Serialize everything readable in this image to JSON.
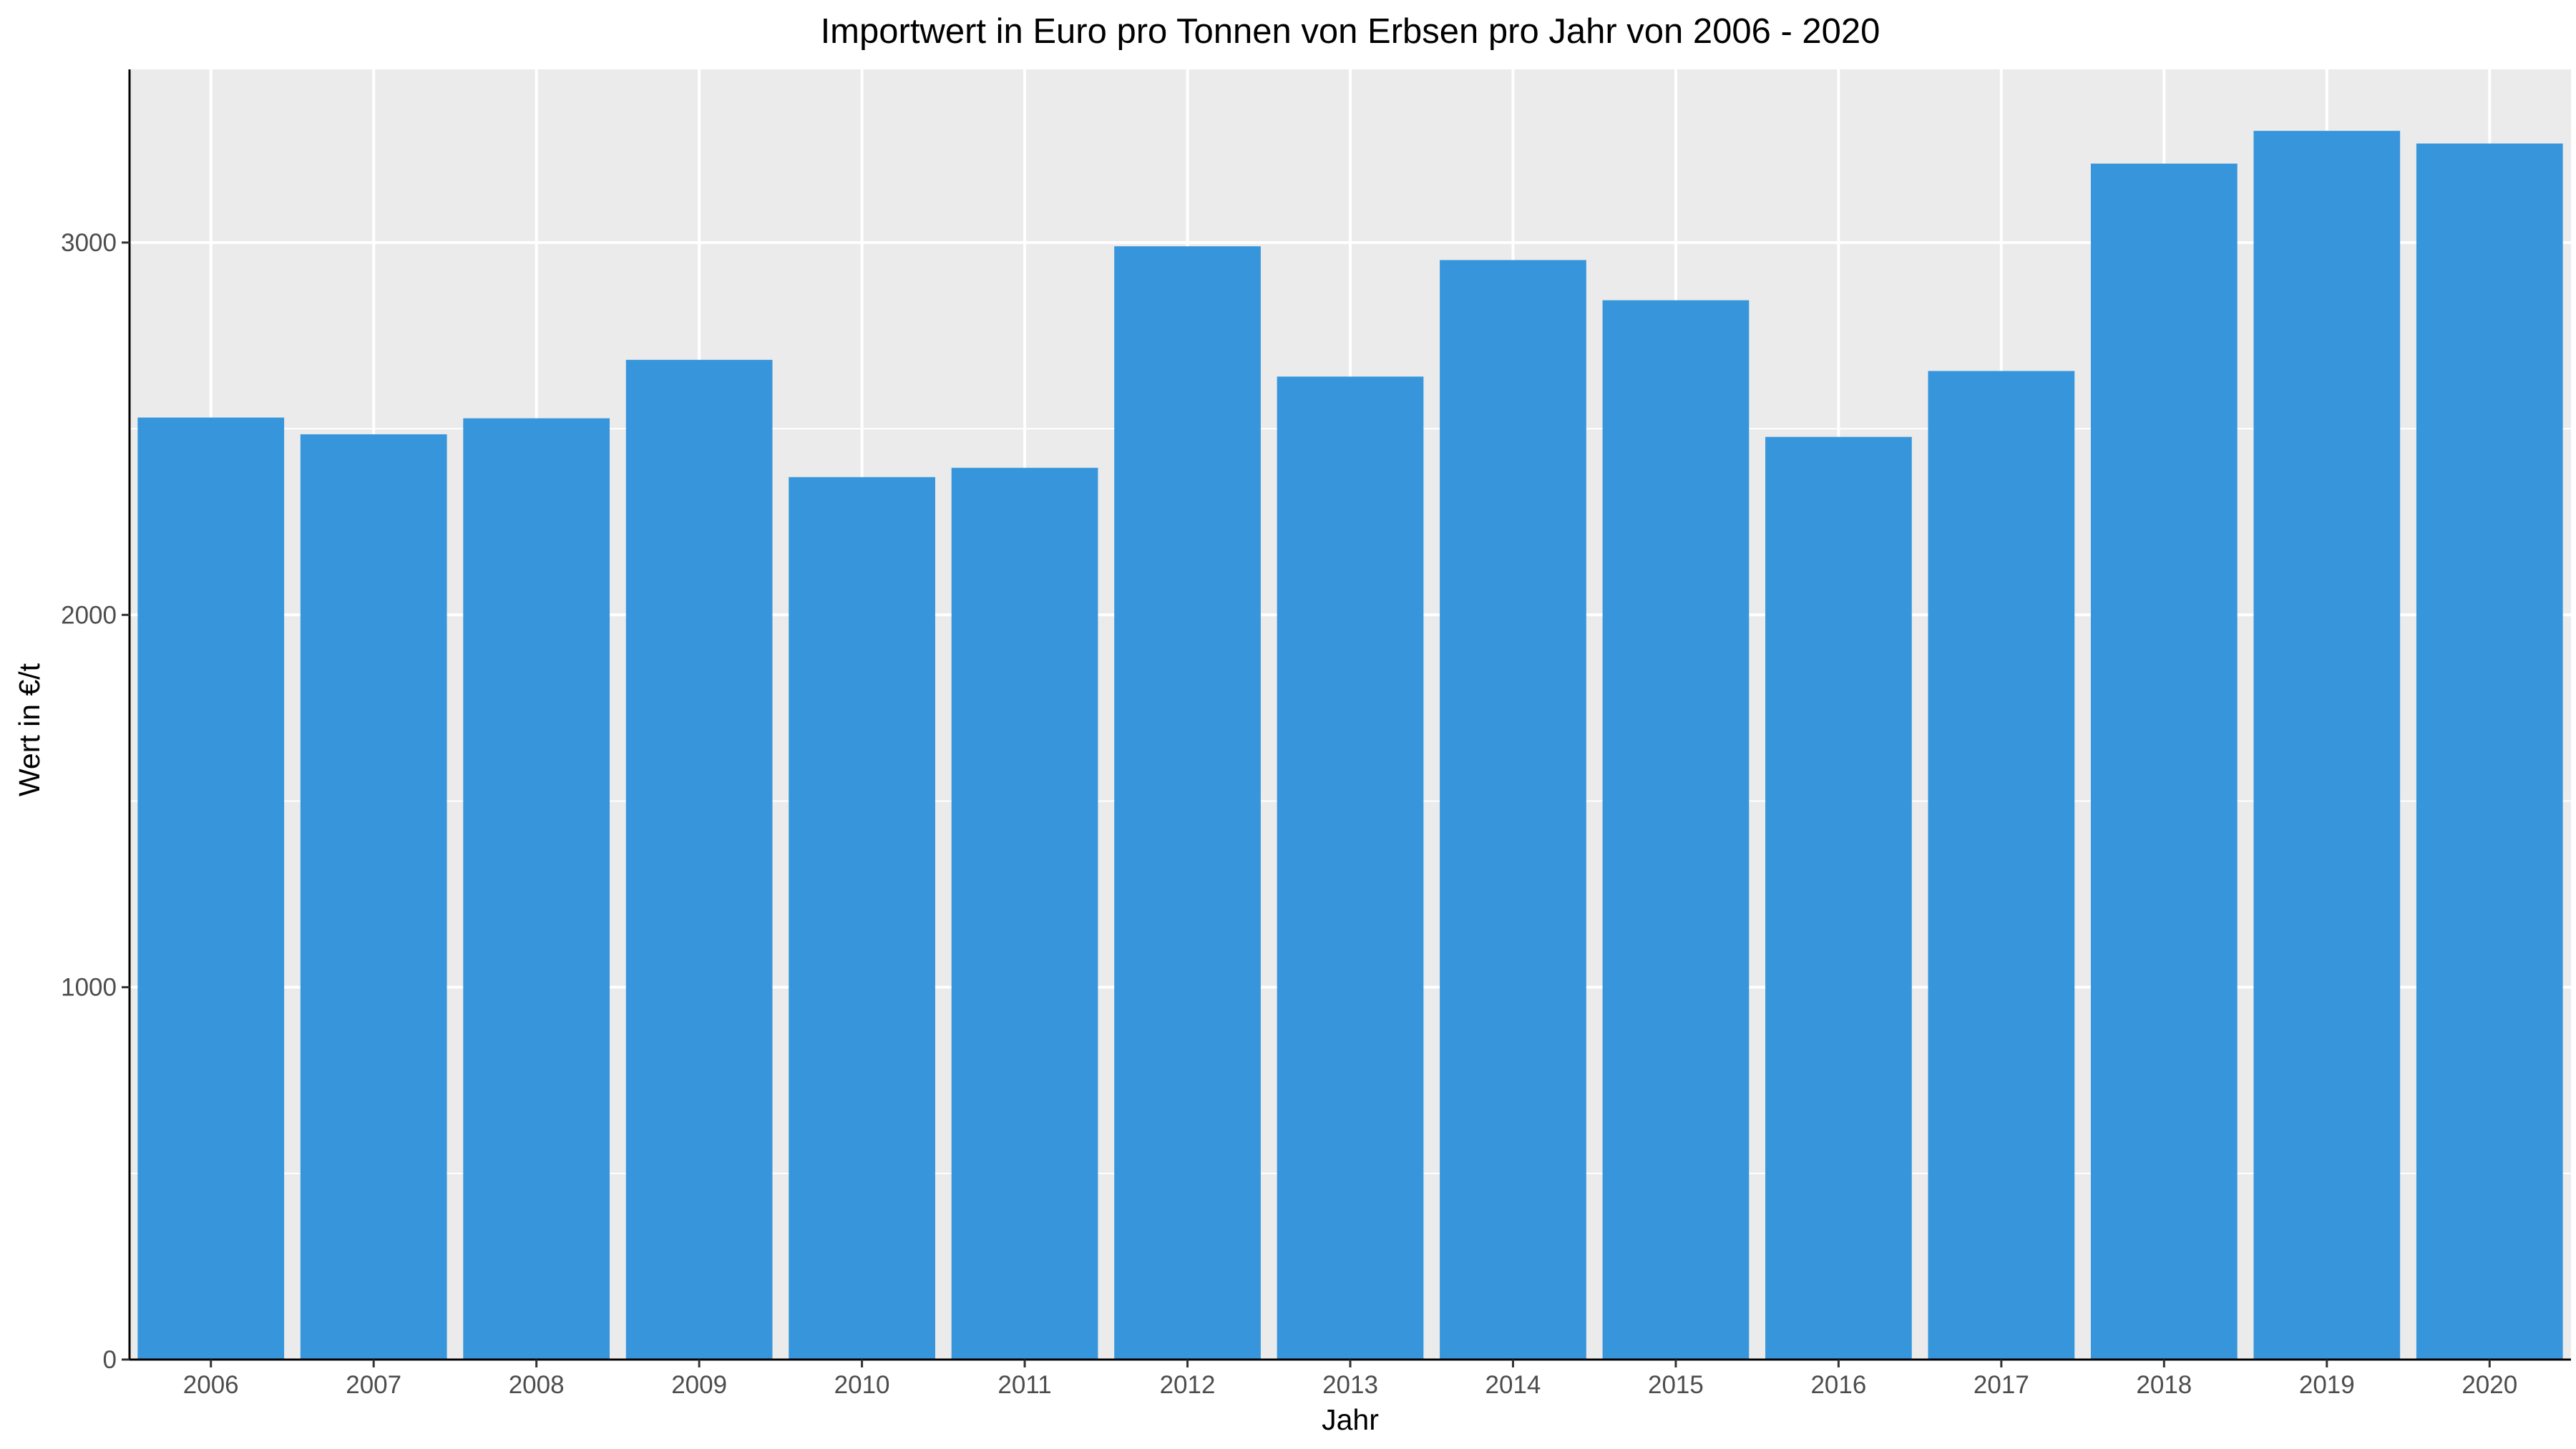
{
  "chart_data": {
    "type": "bar",
    "title": "Importwert in Euro pro Tonnen von Erbsen pro Jahr von 2006 - 2020",
    "xlabel": "Jahr",
    "ylabel": "Wert in €/t",
    "categories": [
      "2006",
      "2007",
      "2008",
      "2009",
      "2010",
      "2011",
      "2012",
      "2013",
      "2014",
      "2015",
      "2016",
      "2017",
      "2018",
      "2019",
      "2020"
    ],
    "values": [
      2530,
      2485,
      2528,
      2685,
      2370,
      2395,
      2990,
      2640,
      2953,
      2845,
      2478,
      2655,
      3212,
      3300,
      3266
    ],
    "ylim": [
      0,
      3465
    ],
    "yticks": [
      0,
      1000,
      2000,
      3000
    ],
    "ytick_labels": [
      "0",
      "1000",
      "2000",
      "3000"
    ],
    "grid": true,
    "colors": {
      "bar": "#3796db",
      "panel_background": "#ebebeb",
      "grid": "#ffffff",
      "axis": "#000000"
    }
  }
}
